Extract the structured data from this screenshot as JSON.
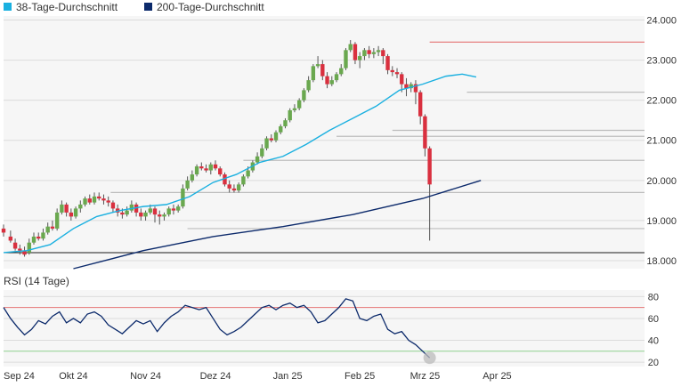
{
  "legend": [
    {
      "label": "38-Tage-Durchschnitt",
      "color": "#1ab0e0"
    },
    {
      "label": "200-Tage-Durchschnitt",
      "color": "#0c2a6b"
    }
  ],
  "rsi_title": "RSI (14 Tage)",
  "colors": {
    "up": "#6aa84f",
    "down": "#d9303f",
    "ma38": "#1ab0e0",
    "ma200": "#0c2a6b",
    "rsi": "#0c2a6b",
    "rsi_upper": "#e57373",
    "rsi_lower": "#8fd18f",
    "grid": "#dcdcdc",
    "panel": "#f6f6f6"
  },
  "chart_data": [
    {
      "type": "candlestick",
      "y_ticks": [
        "18.000",
        "19.000",
        "20.000",
        "21.000",
        "22.000",
        "23.000",
        "24.000"
      ],
      "y_tick_values": [
        18000,
        19000,
        20000,
        21000,
        22000,
        23000,
        24000
      ],
      "ylim": [
        17800,
        24100
      ],
      "x_labels": [
        "Sep 24",
        "Okt 24",
        "Nov 24",
        "Dez 24",
        "Jan 25",
        "Feb 25",
        "Mrz 25",
        "Apr 25"
      ],
      "x_label_days": [
        0,
        30,
        61,
        91,
        122,
        153,
        181,
        212
      ],
      "xlim": [
        0,
        245
      ],
      "ma38": [
        [
          0,
          18200
        ],
        [
          10,
          18250
        ],
        [
          20,
          18400
        ],
        [
          30,
          18800
        ],
        [
          40,
          19100
        ],
        [
          50,
          19250
        ],
        [
          60,
          19350
        ],
        [
          70,
          19400
        ],
        [
          80,
          19600
        ],
        [
          90,
          19950
        ],
        [
          100,
          20150
        ],
        [
          110,
          20450
        ],
        [
          120,
          20600
        ],
        [
          130,
          20900
        ],
        [
          140,
          21250
        ],
        [
          150,
          21550
        ],
        [
          160,
          21850
        ],
        [
          170,
          22250
        ],
        [
          180,
          22400
        ],
        [
          190,
          22600
        ],
        [
          197,
          22650
        ],
        [
          203,
          22580
        ]
      ],
      "ma200": [
        [
          30,
          17750
        ],
        [
          60,
          18250
        ],
        [
          90,
          18600
        ],
        [
          120,
          18850
        ],
        [
          150,
          19150
        ],
        [
          180,
          19550
        ],
        [
          205,
          20000
        ]
      ],
      "ma200_visible": "line runs past the lower bound of the axis before Oct",
      "support_lines": [
        {
          "value": 23450,
          "color": "#e57373",
          "from": 183
        },
        {
          "value": 22200,
          "color": "#bdbdbd",
          "from": 199
        },
        {
          "value": 21250,
          "color": "#bdbdbd",
          "from": 167
        },
        {
          "value": 21100,
          "color": "#bdbdbd",
          "from": 143
        },
        {
          "value": 20500,
          "color": "#bdbdbd",
          "from": 103
        },
        {
          "value": 19700,
          "color": "#bdbdbd",
          "from": 46
        },
        {
          "value": 18800,
          "color": "#bdbdbd",
          "from": 79
        },
        {
          "value": 18200,
          "color": "#1a1a1a",
          "from": 0
        }
      ],
      "candles": [
        [
          0,
          18800,
          18900,
          18700,
          18600
        ],
        [
          3,
          18600,
          18750,
          18500,
          18450
        ],
        [
          5,
          18450,
          18550,
          18300,
          18250
        ],
        [
          7,
          18300,
          18400,
          18250,
          18150
        ],
        [
          9,
          18250,
          18350,
          18150,
          18100
        ],
        [
          11,
          18200,
          18550,
          18450,
          18150
        ],
        [
          13,
          18450,
          18700,
          18600,
          18400
        ],
        [
          15,
          18600,
          18700,
          18550,
          18500
        ],
        [
          17,
          18550,
          18800,
          18700,
          18500
        ],
        [
          19,
          18700,
          18950,
          18850,
          18650
        ],
        [
          21,
          18850,
          19000,
          18800,
          18750
        ],
        [
          23,
          18800,
          19300,
          19200,
          18750
        ],
        [
          25,
          19200,
          19500,
          19400,
          19150
        ],
        [
          27,
          19400,
          19450,
          19200,
          19100
        ],
        [
          29,
          19200,
          19300,
          19100,
          19000
        ],
        [
          31,
          19100,
          19350,
          19300,
          19050
        ],
        [
          33,
          19300,
          19500,
          19400,
          19200
        ],
        [
          35,
          19400,
          19600,
          19550,
          19350
        ],
        [
          37,
          19550,
          19650,
          19450,
          19400
        ],
        [
          39,
          19450,
          19700,
          19600,
          19400
        ],
        [
          41,
          19600,
          19700,
          19550,
          19500
        ],
        [
          43,
          19550,
          19650,
          19500,
          19400
        ],
        [
          45,
          19500,
          19600,
          19450,
          19350
        ],
        [
          47,
          19450,
          19500,
          19300,
          19200
        ],
        [
          49,
          19300,
          19400,
          19200,
          19100
        ],
        [
          51,
          19200,
          19300,
          19150,
          19050
        ],
        [
          53,
          19150,
          19350,
          19250,
          19100
        ],
        [
          55,
          19250,
          19500,
          19400,
          19200
        ],
        [
          57,
          19400,
          19450,
          19200,
          19100
        ],
        [
          59,
          19200,
          19300,
          19100,
          19000
        ],
        [
          61,
          19100,
          19250,
          19200,
          19000
        ],
        [
          63,
          19200,
          19400,
          19300,
          19150
        ],
        [
          65,
          19300,
          19350,
          19150,
          18950
        ],
        [
          67,
          19150,
          19250,
          19100,
          18900
        ],
        [
          69,
          19100,
          19200,
          19150,
          19000
        ],
        [
          71,
          19150,
          19350,
          19300,
          19100
        ],
        [
          73,
          19300,
          19400,
          19250,
          19150
        ],
        [
          75,
          19250,
          19400,
          19350,
          19200
        ],
        [
          77,
          19350,
          19900,
          19800,
          19300
        ],
        [
          79,
          19800,
          20100,
          20000,
          19750
        ],
        [
          81,
          20000,
          20250,
          20150,
          19950
        ],
        [
          83,
          20150,
          20400,
          20350,
          20100
        ],
        [
          85,
          20350,
          20450,
          20300,
          20250
        ],
        [
          87,
          20300,
          20400,
          20250,
          20200
        ],
        [
          89,
          20250,
          20450,
          20400,
          20150
        ],
        [
          91,
          20400,
          20500,
          20300,
          20250
        ],
        [
          93,
          20300,
          20350,
          20150,
          20100
        ],
        [
          95,
          20150,
          20200,
          19900,
          19850
        ],
        [
          97,
          19900,
          20000,
          19800,
          19700
        ],
        [
          99,
          19800,
          19900,
          19750,
          19700
        ],
        [
          101,
          19750,
          19950,
          19900,
          19700
        ],
        [
          103,
          19900,
          20150,
          20100,
          19850
        ],
        [
          105,
          20100,
          20350,
          20250,
          20050
        ],
        [
          107,
          20250,
          20500,
          20450,
          20200
        ],
        [
          109,
          20450,
          20700,
          20600,
          20400
        ],
        [
          111,
          20600,
          20900,
          20800,
          20550
        ],
        [
          113,
          20800,
          21100,
          21050,
          20750
        ],
        [
          115,
          21050,
          21150,
          21000,
          20950
        ],
        [
          117,
          21000,
          21250,
          21200,
          20950
        ],
        [
          119,
          21200,
          21400,
          21350,
          21150
        ],
        [
          121,
          21350,
          21550,
          21500,
          21300
        ],
        [
          123,
          21500,
          21800,
          21750,
          21450
        ],
        [
          125,
          21750,
          21900,
          21800,
          21700
        ],
        [
          127,
          21800,
          22050,
          22000,
          21750
        ],
        [
          129,
          22000,
          22300,
          22250,
          21950
        ],
        [
          131,
          22250,
          22600,
          22500,
          22200
        ],
        [
          133,
          22500,
          22900,
          22850,
          22450
        ],
        [
          135,
          22850,
          23100,
          22900,
          22800
        ],
        [
          137,
          22900,
          23000,
          22600,
          22500
        ],
        [
          139,
          22600,
          22700,
          22400,
          22300
        ],
        [
          141,
          22400,
          22600,
          22500,
          22350
        ],
        [
          143,
          22500,
          22700,
          22650,
          22450
        ],
        [
          145,
          22650,
          22900,
          22800,
          22600
        ],
        [
          147,
          22800,
          23300,
          23250,
          22750
        ],
        [
          149,
          23250,
          23500,
          23400,
          23200
        ],
        [
          151,
          23400,
          23450,
          23000,
          22900
        ],
        [
          153,
          23000,
          23200,
          23100,
          22800
        ],
        [
          155,
          23100,
          23300,
          23250,
          23000
        ],
        [
          157,
          23250,
          23350,
          23150,
          23050
        ],
        [
          159,
          23150,
          23300,
          23200,
          23050
        ],
        [
          161,
          23200,
          23350,
          23250,
          23100
        ],
        [
          163,
          23250,
          23300,
          23100,
          22900
        ],
        [
          165,
          23100,
          23150,
          22750,
          22650
        ],
        [
          167,
          22750,
          22850,
          22700,
          22600
        ],
        [
          169,
          22700,
          22800,
          22650,
          22550
        ],
        [
          171,
          22650,
          22700,
          22400,
          22200
        ],
        [
          173,
          22400,
          22550,
          22300,
          22100
        ],
        [
          175,
          22300,
          22450,
          22400,
          22200
        ],
        [
          177,
          22400,
          22500,
          22200,
          21900
        ],
        [
          179,
          22200,
          22250,
          21600,
          21400
        ],
        [
          181,
          21600,
          21650,
          20800,
          20600
        ],
        [
          183,
          20800,
          20850,
          19900,
          18500
        ]
      ],
      "candles_format": "[day, open, high, close, low]"
    },
    {
      "type": "line",
      "name": "RSI (14 Tage)",
      "y_ticks": [
        "20",
        "40",
        "60",
        "80"
      ],
      "y_tick_values": [
        20,
        40,
        60,
        80
      ],
      "ylim": [
        16,
        86
      ],
      "upper": 70,
      "lower": 30,
      "points": [
        [
          0,
          70
        ],
        [
          3,
          60
        ],
        [
          6,
          52
        ],
        [
          9,
          45
        ],
        [
          12,
          50
        ],
        [
          15,
          58
        ],
        [
          18,
          55
        ],
        [
          21,
          62
        ],
        [
          24,
          66
        ],
        [
          27,
          56
        ],
        [
          30,
          60
        ],
        [
          33,
          56
        ],
        [
          36,
          64
        ],
        [
          39,
          66
        ],
        [
          42,
          62
        ],
        [
          45,
          54
        ],
        [
          48,
          50
        ],
        [
          51,
          46
        ],
        [
          54,
          52
        ],
        [
          57,
          58
        ],
        [
          60,
          55
        ],
        [
          63,
          58
        ],
        [
          66,
          48
        ],
        [
          69,
          56
        ],
        [
          72,
          62
        ],
        [
          75,
          66
        ],
        [
          78,
          72
        ],
        [
          81,
          70
        ],
        [
          84,
          68
        ],
        [
          87,
          70
        ],
        [
          90,
          60
        ],
        [
          93,
          50
        ],
        [
          96,
          45
        ],
        [
          99,
          48
        ],
        [
          102,
          52
        ],
        [
          105,
          58
        ],
        [
          108,
          64
        ],
        [
          111,
          70
        ],
        [
          114,
          72
        ],
        [
          117,
          68
        ],
        [
          120,
          72
        ],
        [
          123,
          74
        ],
        [
          126,
          70
        ],
        [
          129,
          72
        ],
        [
          132,
          66
        ],
        [
          135,
          56
        ],
        [
          138,
          58
        ],
        [
          141,
          64
        ],
        [
          144,
          70
        ],
        [
          147,
          78
        ],
        [
          150,
          76
        ],
        [
          153,
          60
        ],
        [
          156,
          58
        ],
        [
          159,
          62
        ],
        [
          162,
          64
        ],
        [
          165,
          50
        ],
        [
          168,
          46
        ],
        [
          171,
          48
        ],
        [
          174,
          40
        ],
        [
          177,
          36
        ],
        [
          180,
          30
        ],
        [
          183,
          24
        ]
      ]
    }
  ]
}
